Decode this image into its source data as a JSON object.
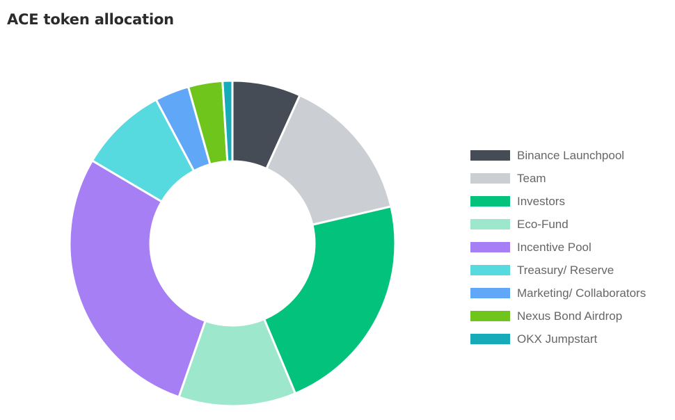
{
  "title": "ACE token allocation",
  "chart_data": {
    "type": "pie",
    "donut": true,
    "title": "ACE token allocation",
    "legend_position": "right",
    "categories": [
      "Binance Launchpool",
      "Team",
      "Investors",
      "Eco-Fund",
      "Incentive Pool",
      "Treasury/ Reserve",
      "Marketing/ Collaborators",
      "Nexus Bond Airdrop",
      "OKX Jumpstart"
    ],
    "values": [
      7,
      15,
      23,
      12,
      29,
      9,
      3.5,
      3.5,
      1
    ],
    "colors": [
      "#454c56",
      "#cbced2",
      "#03c27b",
      "#9de7cc",
      "#a77ff5",
      "#56d9df",
      "#60a7f8",
      "#6fc51c",
      "#17abba"
    ]
  }
}
